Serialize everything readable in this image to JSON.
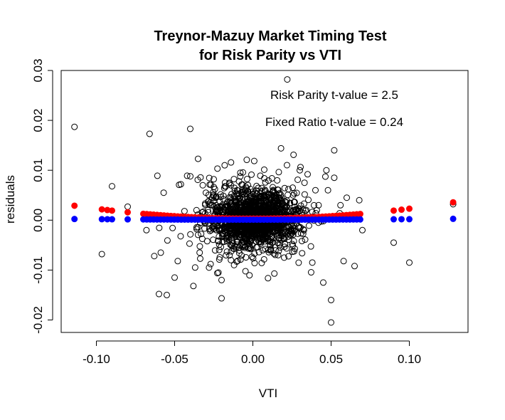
{
  "chart_data": {
    "type": "scatter",
    "title": "Treynor-Mazuy Market Timing Test",
    "subtitle": "for Risk Parity vs VTI",
    "xlabel": "VTI",
    "ylabel": "residuals",
    "xlim": [
      -0.1225,
      0.1375
    ],
    "ylim": [
      -0.0225,
      0.03
    ],
    "x_ticks": [
      {
        "value": -0.1,
        "label": "-0.10"
      },
      {
        "value": -0.05,
        "label": "-0.05"
      },
      {
        "value": 0.0,
        "label": "0.00"
      },
      {
        "value": 0.05,
        "label": "0.05"
      },
      {
        "value": 0.1,
        "label": "0.10"
      }
    ],
    "y_ticks": [
      {
        "value": -0.02,
        "label": "-0.02"
      },
      {
        "value": -0.01,
        "label": "-0.01"
      },
      {
        "value": 0.0,
        "label": "0.00"
      },
      {
        "value": 0.01,
        "label": "0.01"
      },
      {
        "value": 0.02,
        "label": "0.02"
      },
      {
        "value": 0.03,
        "label": "0.03"
      }
    ],
    "grid": false,
    "annotations": [
      {
        "text": "Risk Parity t-value = 2.5"
      },
      {
        "text": "Fixed Ratio t-value = 0.24"
      }
    ],
    "series": [
      {
        "kind": "residuals",
        "marker": "open-circle",
        "color": "#000000",
        "x": [
          -0.114,
          -0.0965,
          -0.09,
          -0.08,
          -0.068,
          -0.066,
          -0.061,
          -0.063,
          -0.057,
          -0.06,
          -0.055,
          -0.05,
          -0.048,
          -0.046,
          -0.042,
          -0.04,
          -0.04,
          -0.038,
          -0.035,
          -0.032,
          -0.03,
          -0.028,
          -0.026,
          -0.022,
          -0.018,
          -0.015,
          -0.012,
          -0.01,
          -0.02,
          -0.025,
          -0.014,
          -0.008,
          0.022,
          0.018,
          0.026,
          0.03,
          0.035,
          0.038,
          0.04,
          0.042,
          0.045,
          0.048,
          0.05,
          0.052,
          0.058,
          0.06,
          0.065,
          0.068,
          0.07,
          0.09,
          0.1,
          0.128,
          0.05,
          0.047,
          0.052,
          0.056,
          -0.036,
          -0.034,
          -0.027,
          0.033,
          0.02
        ],
        "y": [
          0.0187,
          -0.0068,
          0.0068,
          0.0027,
          -0.002,
          0.0173,
          0.0089,
          -0.0072,
          0.0055,
          -0.0148,
          -0.015,
          -0.0115,
          -0.0082,
          0.0072,
          0.0089,
          0.0088,
          0.0183,
          -0.0132,
          0.0123,
          0.007,
          0.0055,
          -0.0095,
          0.0045,
          -0.0105,
          0.011,
          0.0075,
          -0.009,
          0.006,
          -0.012,
          0.0082,
          -0.008,
          0.0095,
          0.0282,
          0.0144,
          0.0131,
          0.01,
          0.0092,
          -0.0085,
          0.006,
          0.003,
          -0.0125,
          0.006,
          -0.016,
          0.014,
          -0.0082,
          0.0045,
          -0.0092,
          0.004,
          -0.002,
          -0.0045,
          -0.0085,
          0.0032,
          -0.0205,
          0.01,
          0.0085,
          0.003,
          0.002,
          -0.0065,
          -0.0088,
          0.0075,
          -0.0075
        ],
        "dense_core": {
          "x_center": 0.001,
          "y_center": 0.0003,
          "x_spread": 0.014,
          "y_spread": 0.0028
        }
      },
      {
        "kind": "fitted",
        "marker": "filled-circle",
        "color": "#ff0000",
        "x_range": [
          -0.07,
          0.07
        ],
        "curvature": 0.2,
        "intercept": 0.0003,
        "extra_x": [
          -0.114,
          -0.0965,
          -0.093,
          -0.09,
          -0.08,
          0.09,
          0.095,
          0.1,
          0.128
        ]
      },
      {
        "kind": "fitted",
        "marker": "filled-circle",
        "color": "#0000ff",
        "x_range": [
          -0.07,
          0.07
        ],
        "curvature": 0.01,
        "intercept": 0.0001,
        "extra_x": [
          -0.114,
          -0.0965,
          -0.093,
          -0.09,
          -0.08,
          0.09,
          0.095,
          0.1,
          0.128
        ]
      }
    ]
  }
}
